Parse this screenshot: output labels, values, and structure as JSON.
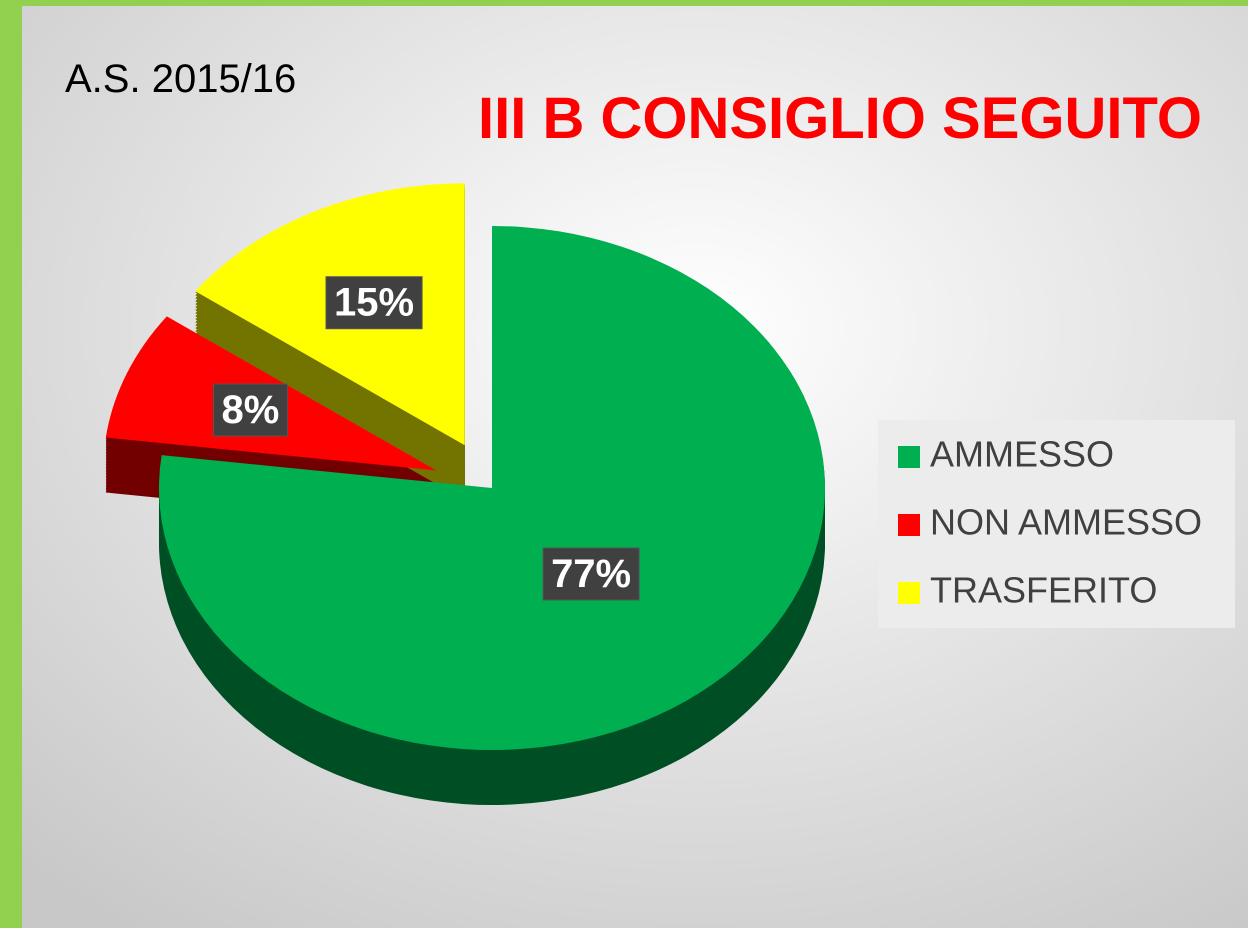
{
  "chart_data": {
    "type": "pie",
    "title": "III B CONSIGLIO SEGUITO",
    "subtitle": "A.S. 2015/16",
    "categories": [
      "AMMESSO",
      "NON AMMESSO",
      "TRASFERITO"
    ],
    "values": [
      77,
      8,
      15
    ],
    "value_labels": [
      "77%",
      "8%",
      "15%"
    ],
    "colors": [
      "#00b050",
      "#ff0000",
      "#ffff00"
    ],
    "legend": "right"
  }
}
